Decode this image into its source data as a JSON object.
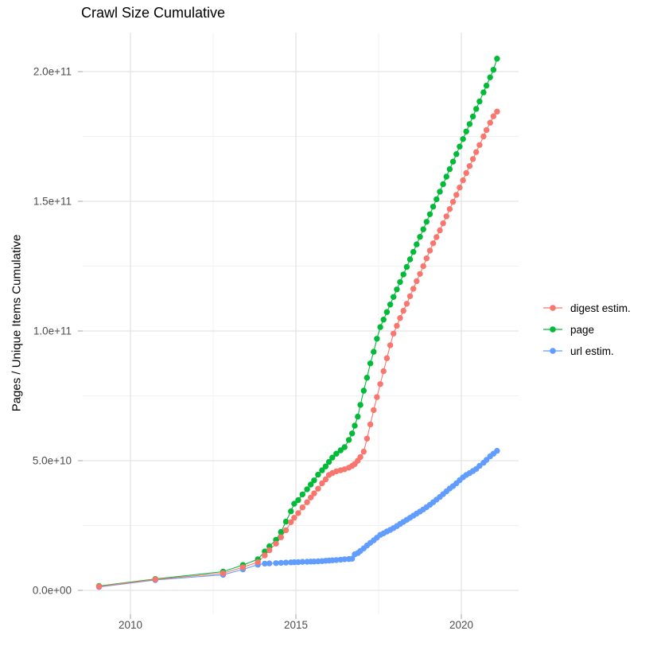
{
  "chart_data": {
    "type": "scatter",
    "title": "Crawl Size Cumulative",
    "xlabel": "",
    "ylabel": "Pages / Unique Items Cumulative",
    "x_axis": {
      "tick_labels": [
        "2010",
        "2015",
        "2020"
      ],
      "tick_values": [
        2010,
        2015,
        2020
      ],
      "minor_gridlines": [
        2012.5,
        2017.5
      ],
      "range": [
        2008.6,
        2021.65
      ]
    },
    "y_axis": {
      "tick_labels": [
        "0.0e+00",
        "5.0e+10",
        "1.0e+11",
        "1.5e+11",
        "2.0e+11"
      ],
      "tick_values_billion": [
        0,
        50,
        100,
        150,
        200
      ],
      "minor_gridlines_billion": [
        25,
        75,
        125,
        175
      ],
      "range_billion": [
        -9,
        214
      ]
    },
    "grid": "on",
    "legend": {
      "position": "right",
      "items": [
        {
          "label": "digest estim.",
          "color": "#F8766D"
        },
        {
          "label": "page",
          "color": "#00BA38"
        },
        {
          "label": "url estim.",
          "color": "#619CFF"
        }
      ]
    },
    "x_years": [
      2009.05,
      2010.75,
      2012.8,
      2013.4,
      2013.85,
      2014.06,
      2014.2,
      2014.4,
      2014.55,
      2014.7,
      2014.85,
      2014.95,
      2015.07,
      2015.2,
      2015.34,
      2015.45,
      2015.55,
      2015.67,
      2015.79,
      2015.9,
      2016.0,
      2016.1,
      2016.22,
      2016.35,
      2016.47,
      2016.6,
      2016.7,
      2016.78,
      2016.87,
      2016.95,
      2017.05,
      2017.15,
      2017.25,
      2017.35,
      2017.45,
      2017.55,
      2017.65,
      2017.75,
      2017.85,
      2017.95,
      2018.05,
      2018.15,
      2018.25,
      2018.35,
      2018.45,
      2018.55,
      2018.65,
      2018.75,
      2018.85,
      2018.95,
      2019.05,
      2019.15,
      2019.25,
      2019.35,
      2019.45,
      2019.55,
      2019.65,
      2019.75,
      2019.85,
      2019.95,
      2020.05,
      2020.15,
      2020.25,
      2020.35,
      2020.45,
      2020.55,
      2020.67,
      2020.76,
      2020.87,
      2020.97,
      2021.08
    ],
    "series": [
      {
        "name": "digest estim.",
        "color": "#F8766D",
        "values_billion": [
          1.5,
          4.2,
          6.6,
          8.9,
          10.9,
          13.5,
          15.5,
          18,
          20.5,
          23.2,
          26.3,
          28,
          29.8,
          32,
          34,
          35.8,
          37.4,
          39.2,
          41.3,
          42.8,
          44.5,
          45.2,
          45.9,
          46.3,
          46.7,
          47.3,
          48,
          48.7,
          50,
          51.4,
          53.5,
          58.5,
          64,
          69.5,
          74.5,
          79.5,
          84.5,
          89.5,
          94.5,
          99,
          102,
          105,
          107.8,
          110.5,
          113.4,
          116.3,
          119.2,
          122,
          125,
          128,
          131,
          133.8,
          136.2,
          138.8,
          141.5,
          144.2,
          147,
          149.8,
          152.5,
          155.3,
          158.1,
          160.9,
          163.6,
          166.3,
          169,
          171.7,
          175,
          177.5,
          180.3,
          182.8,
          184.6
        ]
      },
      {
        "name": "page",
        "color": "#00BA38",
        "values_billion": [
          1.7,
          4.4,
          7.2,
          9.8,
          12,
          15,
          17,
          19.5,
          22.5,
          26.5,
          30.5,
          33.4,
          34.8,
          37,
          39,
          40.8,
          42.4,
          44.6,
          46.3,
          47.8,
          49.5,
          51.2,
          52.7,
          54,
          55.2,
          58,
          60.5,
          63.5,
          67,
          71.5,
          77,
          82,
          87.5,
          92,
          97,
          101.5,
          104.4,
          107.3,
          110.2,
          113.1,
          116,
          118.9,
          121.8,
          124.7,
          127.6,
          130.5,
          133.4,
          136.3,
          139.2,
          142.1,
          145,
          147.9,
          150.8,
          153.7,
          156.6,
          159.5,
          162.4,
          165.3,
          168.2,
          171.1,
          174,
          176.9,
          179.8,
          182.7,
          185.6,
          188.5,
          192,
          194.6,
          197.8,
          200.7,
          205
        ]
      },
      {
        "name": "url estim.",
        "color": "#619CFF",
        "values_billion": [
          1.3,
          4.0,
          6.0,
          8.1,
          9.9,
          10.3,
          10.4,
          10.5,
          10.6,
          10.7,
          10.8,
          10.85,
          10.9,
          11.0,
          11.05,
          11.1,
          11.15,
          11.2,
          11.3,
          11.4,
          11.5,
          11.6,
          11.7,
          11.85,
          12.0,
          12.1,
          12.2,
          13.9,
          14.4,
          15.2,
          16.2,
          17.3,
          18.3,
          19.3,
          20.3,
          21.4,
          22,
          22.7,
          23.3,
          24,
          24.8,
          25.6,
          26.4,
          27.2,
          28,
          28.8,
          29.6,
          30.4,
          31.2,
          32.1,
          33,
          34,
          35,
          36,
          37.1,
          38.2,
          39.3,
          40.2,
          41.3,
          42.5,
          43.6,
          44.5,
          45.2,
          46,
          46.8,
          48,
          49.2,
          50.3,
          51.7,
          52.7,
          53.8
        ]
      }
    ],
    "style": {
      "major_grid_color": "#E3E3E3",
      "minor_grid_color": "#F0F0F0",
      "tick_color": "#B3B3B3",
      "tick_label_color": "#4D4D4D",
      "point_radius": 3.7
    }
  }
}
